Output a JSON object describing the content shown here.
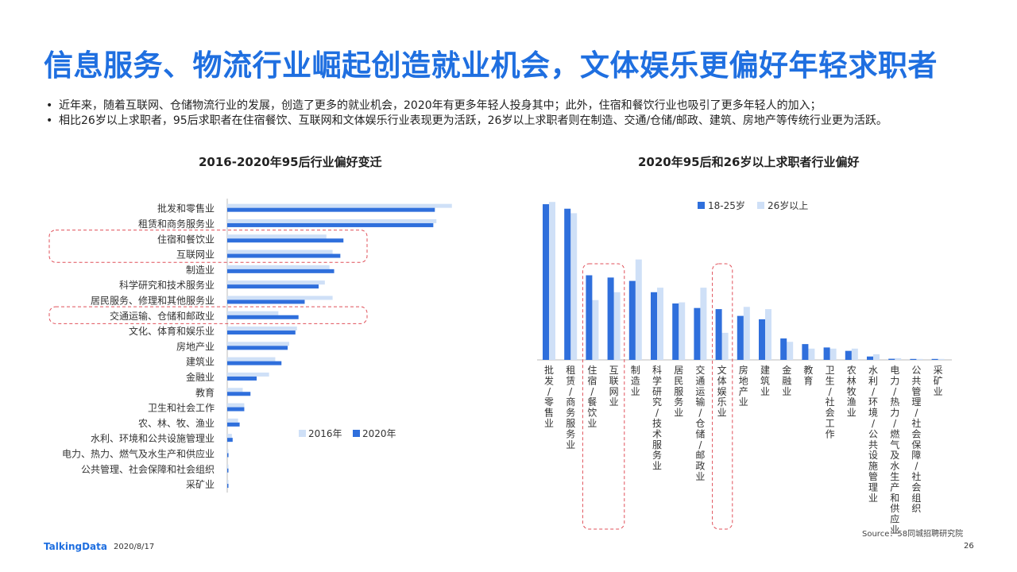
{
  "page": {
    "title": "信息服务、物流行业崛起创造就业机会，文体娱乐更偏好年轻求职者",
    "bullets": [
      "近年来，随着互联网、仓储物流行业的发展，创造了更多的就业机会，2020年有更多年轻人投身其中；此外，住宿和餐饮行业也吸引了更多年轻人的加入；",
      "相比26岁以上求职者，95后求职者在住宿餐饮、互联网和文体娱乐行业表现更为活跃，26岁以上求职者则在制造、交通/仓储/邮政、建筑、房地产等传统行业更为活跃。"
    ],
    "footer": {
      "logo": "TalkingData",
      "date": "2020/8/17",
      "page_number": "26",
      "source": "Source：58同城招聘研究院"
    },
    "colors": {
      "title": "#1f6fe0",
      "series_dark": "#2f6fdc",
      "series_light": "#cfe0f7",
      "highlight_border": "#e0505a"
    }
  },
  "chart_data": [
    {
      "type": "bar",
      "orientation": "horizontal",
      "title": "2016-2020年95后行业偏好变迁",
      "categories": [
        "批发和零售业",
        "租赁和商务服务业",
        "住宿和餐饮业",
        "互联网业",
        "制造业",
        "科学研究和技术服务业",
        "居民服务、修理和其他服务业",
        "交通运输、仓储和邮政业",
        "文化、体育和娱乐业",
        "房地产业",
        "建筑业",
        "金融业",
        "教育",
        "卫生和社会工作",
        "农、林、牧、渔业",
        "水利、环境和公共设施管理业",
        "电力、热力、燃气及水生产和供应业",
        "公共管理、社会保障和社会组织",
        "采矿业"
      ],
      "series": [
        {
          "name": "2016年",
          "values": [
            14.5,
            13.5,
            6.4,
            6.8,
            6.6,
            6.3,
            6.8,
            3.3,
            4.5,
            4.0,
            3.1,
            2.7,
            1.0,
            1.1,
            0.7,
            0.3,
            0.05,
            0.05,
            0.03
          ]
        },
        {
          "name": "2020年",
          "values": [
            13.4,
            13.3,
            7.5,
            7.3,
            6.9,
            5.9,
            5.0,
            4.6,
            4.4,
            3.9,
            3.5,
            1.9,
            1.5,
            1.1,
            0.8,
            0.35,
            0.08,
            0.06,
            0.04
          ]
        }
      ],
      "legend": "bottom-right",
      "highlighted_categories": [
        "住宿和餐饮业",
        "互联网业",
        "交通运输、仓储和邮政业"
      ]
    },
    {
      "type": "bar",
      "orientation": "vertical",
      "title": "2020年95后和26岁以上求职者行业偏好",
      "categories": [
        "批发/零售业",
        "租赁/商务服务业",
        "住宿/餐饮业",
        "互联网业",
        "制造业",
        "科学研究/技术服务业",
        "居民服务业",
        "交通运输/仓储/邮政业",
        "文体娱乐业",
        "房地产业",
        "建筑业",
        "金融业",
        "教育",
        "卫生/社会工作",
        "农林牧渔业",
        "水利/环境/公共设施管理业",
        "电力/热力/燃气及水生产和供应业",
        "公共管理/社会保障/社会组织",
        "采矿业"
      ],
      "series": [
        {
          "name": "18-25岁",
          "values": [
            13.8,
            13.4,
            7.5,
            7.3,
            7.0,
            6.0,
            5.0,
            4.6,
            4.5,
            3.9,
            3.6,
            1.9,
            1.4,
            1.1,
            0.8,
            0.3,
            0.1,
            0.06,
            0.04
          ]
        },
        {
          "name": "26岁以上",
          "values": [
            14.0,
            13.0,
            5.3,
            6.0,
            8.9,
            6.4,
            5.1,
            6.4,
            2.4,
            4.7,
            4.5,
            1.6,
            1.0,
            1.0,
            1.0,
            0.5,
            0.15,
            0.08,
            0.06
          ]
        }
      ],
      "legend": "top",
      "highlighted_categories": [
        "住宿/餐饮业",
        "互联网业",
        "文体娱乐业"
      ]
    }
  ]
}
